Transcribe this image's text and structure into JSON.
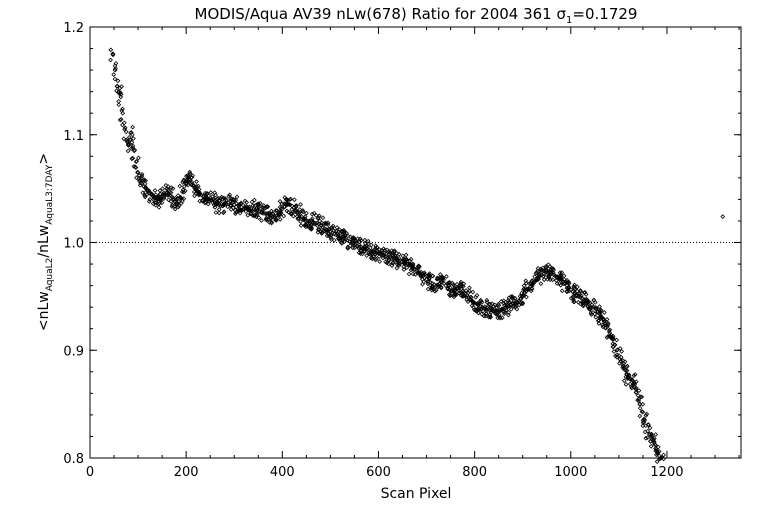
{
  "chart_data": {
    "type": "scatter",
    "title_parts": {
      "prefix": "MODIS/Aqua AV39 nLw(678) Ratio for 2004 361 ",
      "sigma": "σ",
      "sigma_sub": "1",
      "suffix": "=0.1729"
    },
    "xlabel": "Scan Pixel",
    "ylabel_parts": {
      "open": "<nLw",
      "sub1": "AquaL2",
      "mid": "/nLw",
      "sub2": "AquaL3:7DAY",
      "close": ">"
    },
    "xlim": [
      0,
      1354
    ],
    "ylim": [
      0.8,
      1.2
    ],
    "x_ticks": [
      {
        "value": 0,
        "label": "0"
      },
      {
        "value": 200,
        "label": "200"
      },
      {
        "value": 400,
        "label": "400"
      },
      {
        "value": 600,
        "label": "600"
      },
      {
        "value": 800,
        "label": "800"
      },
      {
        "value": 1000,
        "label": "1000"
      },
      {
        "value": 1200,
        "label": "1200"
      }
    ],
    "y_ticks": [
      {
        "value": 0.8,
        "label": "0.8"
      },
      {
        "value": 0.9,
        "label": "0.9"
      },
      {
        "value": 1.0,
        "label": "1.0"
      },
      {
        "value": 1.1,
        "label": "1.1"
      },
      {
        "value": 1.2,
        "label": "1.2"
      }
    ],
    "reference_line": {
      "y": 1.0,
      "style": "dotted"
    },
    "marker": "diamond",
    "series": [
      {
        "values": [
          [
            48,
            1.175
          ],
          [
            52,
            1.16
          ],
          [
            56,
            1.145
          ],
          [
            60,
            1.14
          ],
          [
            64,
            1.135
          ],
          [
            68,
            1.12
          ],
          [
            72,
            1.105
          ],
          [
            76,
            1.095
          ],
          [
            80,
            1.09
          ],
          [
            84,
            1.095
          ],
          [
            88,
            1.1
          ],
          [
            92,
            1.085
          ],
          [
            96,
            1.075
          ],
          [
            100,
            1.065
          ],
          [
            104,
            1.058
          ],
          [
            108,
            1.055
          ],
          [
            112,
            1.052
          ],
          [
            116,
            1.05
          ],
          [
            120,
            1.048
          ],
          [
            124,
            1.046
          ],
          [
            128,
            1.044
          ],
          [
            132,
            1.043
          ],
          [
            136,
            1.042
          ],
          [
            140,
            1.04
          ],
          [
            144,
            1.04
          ],
          [
            148,
            1.041
          ],
          [
            152,
            1.043
          ],
          [
            156,
            1.045
          ],
          [
            160,
            1.046
          ],
          [
            164,
            1.045
          ],
          [
            168,
            1.043
          ],
          [
            172,
            1.04
          ],
          [
            176,
            1.038
          ],
          [
            180,
            1.036
          ],
          [
            184,
            1.038
          ],
          [
            188,
            1.042
          ],
          [
            192,
            1.047
          ],
          [
            196,
            1.052
          ],
          [
            200,
            1.055
          ],
          [
            204,
            1.057
          ],
          [
            208,
            1.058
          ],
          [
            212,
            1.056
          ],
          [
            216,
            1.053
          ],
          [
            220,
            1.05
          ],
          [
            224,
            1.047
          ],
          [
            228,
            1.045
          ],
          [
            232,
            1.044
          ],
          [
            236,
            1.043
          ],
          [
            240,
            1.042
          ],
          [
            244,
            1.041
          ],
          [
            248,
            1.04
          ],
          [
            252,
            1.04
          ],
          [
            256,
            1.04
          ],
          [
            260,
            1.039
          ],
          [
            264,
            1.037
          ],
          [
            268,
            1.035
          ],
          [
            272,
            1.034
          ],
          [
            276,
            1.034
          ],
          [
            280,
            1.035
          ],
          [
            284,
            1.036
          ],
          [
            288,
            1.037
          ],
          [
            292,
            1.038
          ],
          [
            296,
            1.037
          ],
          [
            300,
            1.035
          ],
          [
            304,
            1.033
          ],
          [
            308,
            1.031
          ],
          [
            312,
            1.03
          ],
          [
            316,
            1.03
          ],
          [
            320,
            1.031
          ],
          [
            324,
            1.032
          ],
          [
            328,
            1.033
          ],
          [
            332,
            1.033
          ],
          [
            336,
            1.032
          ],
          [
            340,
            1.031
          ],
          [
            344,
            1.03
          ],
          [
            348,
            1.03
          ],
          [
            352,
            1.029
          ],
          [
            356,
            1.028
          ],
          [
            360,
            1.027
          ],
          [
            364,
            1.027
          ],
          [
            368,
            1.027
          ],
          [
            372,
            1.026
          ],
          [
            376,
            1.025
          ],
          [
            380,
            1.024
          ],
          [
            384,
            1.024
          ],
          [
            388,
            1.025
          ],
          [
            392,
            1.026
          ],
          [
            396,
            1.028
          ],
          [
            400,
            1.031
          ],
          [
            404,
            1.033
          ],
          [
            408,
            1.035
          ],
          [
            412,
            1.036
          ],
          [
            416,
            1.035
          ],
          [
            420,
            1.034
          ],
          [
            424,
            1.032
          ],
          [
            428,
            1.03
          ],
          [
            432,
            1.028
          ],
          [
            436,
            1.026
          ],
          [
            440,
            1.024
          ],
          [
            444,
            1.022
          ],
          [
            448,
            1.02
          ],
          [
            452,
            1.02
          ],
          [
            456,
            1.02
          ],
          [
            460,
            1.02
          ],
          [
            464,
            1.019
          ],
          [
            468,
            1.018
          ],
          [
            472,
            1.018
          ],
          [
            476,
            1.017
          ],
          [
            480,
            1.016
          ],
          [
            484,
            1.014
          ],
          [
            488,
            1.013
          ],
          [
            492,
            1.012
          ],
          [
            496,
            1.011
          ],
          [
            500,
            1.01
          ],
          [
            504,
            1.009
          ],
          [
            508,
            1.008
          ],
          [
            512,
            1.007
          ],
          [
            516,
            1.006
          ],
          [
            520,
            1.006
          ],
          [
            524,
            1.005
          ],
          [
            528,
            1.004
          ],
          [
            532,
            1.003
          ],
          [
            536,
            1.002
          ],
          [
            540,
            1.001
          ],
          [
            544,
            1.0
          ],
          [
            548,
            0.999
          ],
          [
            552,
            0.998
          ],
          [
            556,
            0.997
          ],
          [
            560,
            0.996
          ],
          [
            564,
            0.996
          ],
          [
            568,
            0.995
          ],
          [
            572,
            0.994
          ],
          [
            576,
            0.994
          ],
          [
            580,
            0.993
          ],
          [
            584,
            0.992
          ],
          [
            588,
            0.992
          ],
          [
            592,
            0.991
          ],
          [
            596,
            0.99
          ],
          [
            600,
            0.99
          ],
          [
            604,
            0.989
          ],
          [
            608,
            0.988
          ],
          [
            612,
            0.988
          ],
          [
            616,
            0.987
          ],
          [
            620,
            0.986
          ],
          [
            624,
            0.986
          ],
          [
            628,
            0.985
          ],
          [
            632,
            0.985
          ],
          [
            636,
            0.984
          ],
          [
            640,
            0.983
          ],
          [
            644,
            0.983
          ],
          [
            648,
            0.982
          ],
          [
            652,
            0.981
          ],
          [
            656,
            0.981
          ],
          [
            660,
            0.98
          ],
          [
            664,
            0.979
          ],
          [
            668,
            0.978
          ],
          [
            672,
            0.977
          ],
          [
            676,
            0.975
          ],
          [
            680,
            0.974
          ],
          [
            684,
            0.972
          ],
          [
            688,
            0.97
          ],
          [
            692,
            0.969
          ],
          [
            696,
            0.967
          ],
          [
            700,
            0.966
          ],
          [
            704,
            0.964
          ],
          [
            708,
            0.963
          ],
          [
            712,
            0.962
          ],
          [
            716,
            0.961
          ],
          [
            720,
            0.96
          ],
          [
            724,
            0.96
          ],
          [
            728,
            0.962
          ],
          [
            732,
            0.963
          ],
          [
            736,
            0.962
          ],
          [
            740,
            0.96
          ],
          [
            744,
            0.958
          ],
          [
            748,
            0.956
          ],
          [
            752,
            0.955
          ],
          [
            756,
            0.955
          ],
          [
            760,
            0.956
          ],
          [
            764,
            0.957
          ],
          [
            768,
            0.958
          ],
          [
            772,
            0.957
          ],
          [
            776,
            0.955
          ],
          [
            780,
            0.953
          ],
          [
            784,
            0.951
          ],
          [
            788,
            0.949
          ],
          [
            792,
            0.947
          ],
          [
            796,
            0.945
          ],
          [
            800,
            0.944
          ],
          [
            804,
            0.943
          ],
          [
            808,
            0.942
          ],
          [
            812,
            0.941
          ],
          [
            816,
            0.94
          ],
          [
            820,
            0.939
          ],
          [
            824,
            0.938
          ],
          [
            828,
            0.938
          ],
          [
            832,
            0.937
          ],
          [
            836,
            0.937
          ],
          [
            840,
            0.936
          ],
          [
            844,
            0.936
          ],
          [
            848,
            0.936
          ],
          [
            852,
            0.936
          ],
          [
            856,
            0.937
          ],
          [
            860,
            0.938
          ],
          [
            864,
            0.939
          ],
          [
            868,
            0.94
          ],
          [
            872,
            0.941
          ],
          [
            876,
            0.942
          ],
          [
            880,
            0.943
          ],
          [
            884,
            0.944
          ],
          [
            888,
            0.945
          ],
          [
            892,
            0.946
          ],
          [
            896,
            0.948
          ],
          [
            900,
            0.95
          ],
          [
            904,
            0.953
          ],
          [
            908,
            0.955
          ],
          [
            912,
            0.957
          ],
          [
            916,
            0.959
          ],
          [
            920,
            0.961
          ],
          [
            924,
            0.963
          ],
          [
            928,
            0.965
          ],
          [
            932,
            0.967
          ],
          [
            936,
            0.969
          ],
          [
            940,
            0.97
          ],
          [
            944,
            0.971
          ],
          [
            948,
            0.972
          ],
          [
            952,
            0.972
          ],
          [
            956,
            0.972
          ],
          [
            960,
            0.971
          ],
          [
            964,
            0.97
          ],
          [
            968,
            0.969
          ],
          [
            972,
            0.968
          ],
          [
            976,
            0.967
          ],
          [
            980,
            0.966
          ],
          [
            984,
            0.964
          ],
          [
            988,
            0.962
          ],
          [
            992,
            0.96
          ],
          [
            996,
            0.958
          ],
          [
            1000,
            0.956
          ],
          [
            1004,
            0.954
          ],
          [
            1008,
            0.952
          ],
          [
            1012,
            0.951
          ],
          [
            1016,
            0.95
          ],
          [
            1020,
            0.949
          ],
          [
            1024,
            0.948
          ],
          [
            1028,
            0.947
          ],
          [
            1032,
            0.946
          ],
          [
            1036,
            0.945
          ],
          [
            1040,
            0.944
          ],
          [
            1044,
            0.942
          ],
          [
            1048,
            0.94
          ],
          [
            1052,
            0.938
          ],
          [
            1056,
            0.936
          ],
          [
            1060,
            0.934
          ],
          [
            1064,
            0.931
          ],
          [
            1068,
            0.928
          ],
          [
            1072,
            0.925
          ],
          [
            1076,
            0.922
          ],
          [
            1080,
            0.918
          ],
          [
            1084,
            0.914
          ],
          [
            1088,
            0.91
          ],
          [
            1092,
            0.905
          ],
          [
            1096,
            0.9
          ],
          [
            1100,
            0.895
          ],
          [
            1104,
            0.89
          ],
          [
            1108,
            0.886
          ],
          [
            1112,
            0.882
          ],
          [
            1116,
            0.878
          ],
          [
            1120,
            0.875
          ],
          [
            1124,
            0.873
          ],
          [
            1128,
            0.872
          ],
          [
            1132,
            0.87
          ],
          [
            1136,
            0.865
          ],
          [
            1140,
            0.858
          ],
          [
            1144,
            0.85
          ],
          [
            1148,
            0.843
          ],
          [
            1152,
            0.836
          ],
          [
            1156,
            0.83
          ],
          [
            1160,
            0.825
          ],
          [
            1164,
            0.822
          ],
          [
            1168,
            0.82
          ],
          [
            1172,
            0.817
          ],
          [
            1176,
            0.812
          ],
          [
            1180,
            0.806
          ],
          [
            1184,
            0.802
          ],
          [
            1188,
            0.8
          ],
          [
            1316,
            1.024
          ]
        ]
      }
    ]
  }
}
